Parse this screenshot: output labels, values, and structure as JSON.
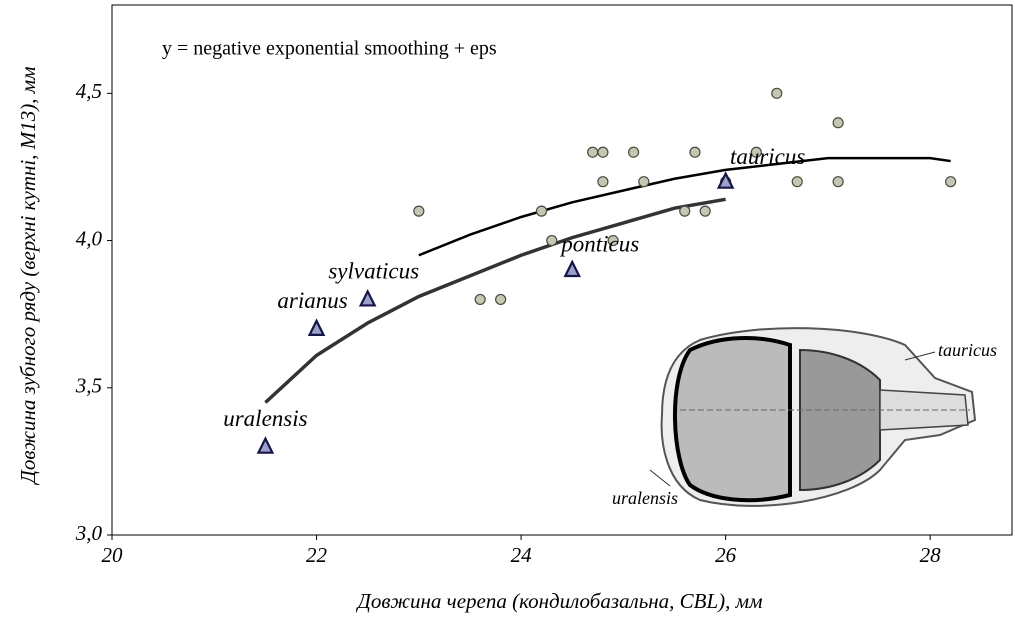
{
  "chart_data": {
    "type": "scatter",
    "annotation": "y = negative exponential smoothing + eps",
    "x_label": "Довжина черепа (кондилобазальна, CBL), мм",
    "y_label": "Довжина зубного ряду (верхні кутні, M13), мм",
    "xlim": [
      20,
      28.8
    ],
    "ylim": [
      3.0,
      4.8
    ],
    "xticks": [
      20,
      22,
      24,
      26,
      28
    ],
    "yticks": [
      {
        "value": 3.0,
        "label": "3,0"
      },
      {
        "value": 3.5,
        "label": "3,5"
      },
      {
        "value": 4.0,
        "label": "4,0"
      },
      {
        "value": 4.5,
        "label": "4,5"
      }
    ],
    "grid": false,
    "points": {
      "color": "#c6c6b2",
      "x": [
        23.0,
        23.6,
        23.8,
        24.2,
        24.3,
        24.7,
        24.8,
        24.8,
        24.9,
        25.1,
        25.2,
        25.6,
        25.7,
        25.8,
        26.0,
        26.3,
        26.5,
        26.7,
        27.1,
        27.1,
        28.2
      ],
      "y": [
        4.1,
        3.8,
        3.8,
        4.1,
        4.0,
        4.3,
        4.3,
        4.2,
        4.0,
        4.3,
        4.2,
        4.1,
        4.3,
        4.1,
        4.2,
        4.3,
        4.5,
        4.2,
        4.4,
        4.2,
        4.2
      ]
    },
    "species": {
      "color": "#9aa0c8",
      "labels": [
        "uralensis",
        "arianus",
        "sylvaticus",
        "ponticus",
        "tauricus"
      ],
      "x": [
        21.5,
        22.0,
        22.5,
        24.5,
        26.0
      ],
      "y": [
        3.3,
        3.7,
        3.8,
        3.9,
        4.2
      ]
    },
    "curves": [
      {
        "color": "#000000",
        "x": [
          23,
          23.5,
          24,
          24.5,
          25,
          25.5,
          26,
          26.5,
          27,
          27.5,
          28,
          28.2
        ],
        "y": [
          3.95,
          4.02,
          4.08,
          4.13,
          4.17,
          4.21,
          4.24,
          4.26,
          4.28,
          4.28,
          4.28,
          4.27
        ]
      },
      {
        "color": "#333333",
        "x": [
          21.5,
          22,
          22.5,
          23,
          23.5,
          24,
          24.5,
          25,
          25.5,
          26
        ],
        "y": [
          3.45,
          3.61,
          3.72,
          3.81,
          3.88,
          3.95,
          4.01,
          4.06,
          4.11,
          4.14
        ]
      }
    ],
    "inset_labels": [
      "tauricus",
      "uralensis"
    ]
  }
}
